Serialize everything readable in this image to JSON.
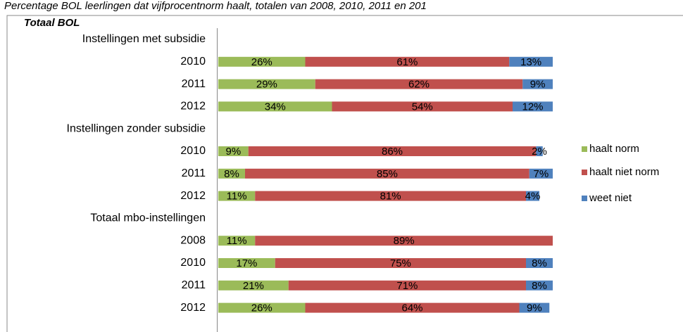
{
  "chart_data": {
    "type": "bar",
    "orientation": "horizontal",
    "stacked": true,
    "title": "Percentage BOL leerlingen dat vijfprocentnorm haalt, totalen van 2008, 2010, 2011 en 201",
    "subtitle": "Totaal BOL",
    "categories": [
      "Instellingen met subsidie",
      "2010",
      "2011",
      "2012",
      "Instellingen zonder subsidie",
      "2010",
      "2011",
      "2012",
      "Totaal mbo-instellingen",
      "2008",
      "2010",
      "2011",
      "2012"
    ],
    "xlim": [
      0,
      100
    ],
    "legend": "right",
    "series": [
      {
        "name": "haalt norm",
        "color": "#9bbb59",
        "values": [
          null,
          26,
          29,
          34,
          null,
          9,
          8,
          11,
          null,
          11,
          17,
          21,
          26
        ],
        "value_labels": [
          null,
          "26%",
          "29%",
          "34%",
          null,
          "9%",
          "8%",
          "11%",
          null,
          "11%",
          "17%",
          "21%",
          "26%"
        ]
      },
      {
        "name": "haalt niet norm",
        "color": "#c0504d",
        "values": [
          null,
          61,
          62,
          54,
          null,
          86,
          85,
          81,
          null,
          89,
          75,
          71,
          64
        ],
        "value_labels": [
          null,
          "61%",
          "62%",
          "54%",
          null,
          "86%",
          "85%",
          "81%",
          null,
          "89%",
          "75%",
          "71%",
          "64%"
        ]
      },
      {
        "name": "weet niet",
        "color": "#4f81bd",
        "values": [
          null,
          13,
          9,
          12,
          null,
          2,
          7,
          4,
          null,
          null,
          8,
          8,
          9
        ],
        "value_labels": [
          null,
          "13%",
          "9%",
          "12%",
          null,
          "2%",
          "7%",
          "4%",
          null,
          null,
          "8%",
          "8%",
          "9%"
        ]
      }
    ]
  }
}
